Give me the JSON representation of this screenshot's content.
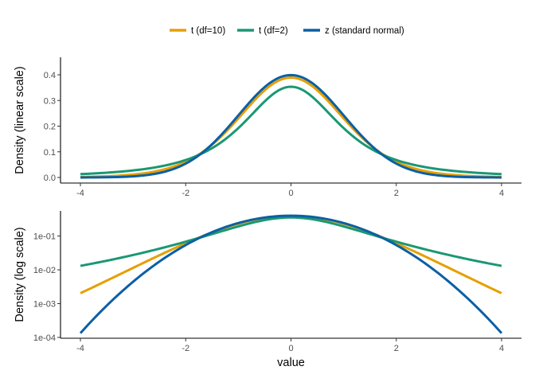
{
  "chart_data": [
    {
      "type": "line",
      "panel": "top",
      "scale": "linear",
      "xlabel": "",
      "ylabel": "Density (linear scale)",
      "xlim": [
        -4,
        4
      ],
      "ylim": [
        0,
        0.4
      ],
      "xticks": [
        -4,
        -2,
        0,
        2,
        4
      ],
      "xtick_labels": [
        "-4",
        "-2",
        "0",
        "2",
        "4"
      ],
      "yticks": [
        0.0,
        0.1,
        0.2,
        0.3,
        0.4
      ],
      "ytick_labels": [
        "0.0",
        "0.1",
        "0.2",
        "0.3",
        "0.4"
      ],
      "grid": false,
      "x": [
        -4,
        -3.5,
        -3,
        -2.5,
        -2,
        -1.5,
        -1,
        -0.5,
        0,
        0.5,
        1,
        1.5,
        2,
        2.5,
        3,
        3.5,
        4
      ],
      "series": [
        {
          "name": "t (df=10)",
          "color": "#E69F00",
          "values": [
            0.00203,
            0.00462,
            0.01108,
            0.0268,
            0.06114,
            0.12404,
            0.2294,
            0.34046,
            0.38911,
            0.34046,
            0.2294,
            0.12404,
            0.06114,
            0.0268,
            0.01108,
            0.00462,
            0.00203
          ]
        },
        {
          "name": "t (df=2)",
          "color": "#1A9873",
          "values": [
            0.01309,
            0.01778,
            0.02741,
            0.041,
            0.06804,
            0.11394,
            0.19245,
            0.2963,
            0.35355,
            0.2963,
            0.19245,
            0.11394,
            0.06804,
            0.041,
            0.02741,
            0.01778,
            0.01309
          ]
        },
        {
          "name": "z (standard normal)",
          "color": "#0B5FA5",
          "values": [
            0.000134,
            0.000873,
            0.00443,
            0.01753,
            0.05399,
            0.12952,
            0.24197,
            0.35207,
            0.39894,
            0.35207,
            0.24197,
            0.12952,
            0.05399,
            0.01753,
            0.00443,
            0.000873,
            0.000134
          ]
        }
      ]
    },
    {
      "type": "line",
      "panel": "bottom",
      "scale": "log",
      "xlabel": "value",
      "ylabel": "Density (log scale)",
      "xlim": [
        -4,
        4
      ],
      "ylim": [
        0.0001,
        0.4
      ],
      "xticks": [
        -4,
        -2,
        0,
        2,
        4
      ],
      "xtick_labels": [
        "-4",
        "-2",
        "0",
        "2",
        "4"
      ],
      "yticks": [
        0.0001,
        0.001,
        0.01,
        0.1
      ],
      "ytick_labels": [
        "1e-04",
        "1e-03",
        "1e-02",
        "1e-01"
      ],
      "grid": false,
      "x": [
        -4,
        -3.5,
        -3,
        -2.5,
        -2,
        -1.5,
        -1,
        -0.5,
        0,
        0.5,
        1,
        1.5,
        2,
        2.5,
        3,
        3.5,
        4
      ],
      "series": [
        {
          "name": "t (df=10)",
          "color": "#E69F00",
          "values": [
            0.00203,
            0.00462,
            0.01108,
            0.0268,
            0.06114,
            0.12404,
            0.2294,
            0.34046,
            0.38911,
            0.34046,
            0.2294,
            0.12404,
            0.06114,
            0.0268,
            0.01108,
            0.00462,
            0.00203
          ]
        },
        {
          "name": "t (df=2)",
          "color": "#1A9873",
          "values": [
            0.01309,
            0.01778,
            0.02741,
            0.041,
            0.06804,
            0.11394,
            0.19245,
            0.2963,
            0.35355,
            0.2963,
            0.19245,
            0.11394,
            0.06804,
            0.041,
            0.02741,
            0.01778,
            0.01309
          ]
        },
        {
          "name": "z (standard normal)",
          "color": "#0B5FA5",
          "values": [
            0.000134,
            0.000873,
            0.00443,
            0.01753,
            0.05399,
            0.12952,
            0.24197,
            0.35207,
            0.39894,
            0.35207,
            0.24197,
            0.12952,
            0.05399,
            0.01753,
            0.00443,
            0.000873,
            0.000134
          ]
        }
      ]
    }
  ],
  "legend": {
    "placement": "top",
    "items": [
      {
        "label": "t (df=10)",
        "color": "#E69F00"
      },
      {
        "label": "t (df=2)",
        "color": "#1A9873"
      },
      {
        "label": "z (standard normal)",
        "color": "#0B5FA5"
      }
    ]
  }
}
